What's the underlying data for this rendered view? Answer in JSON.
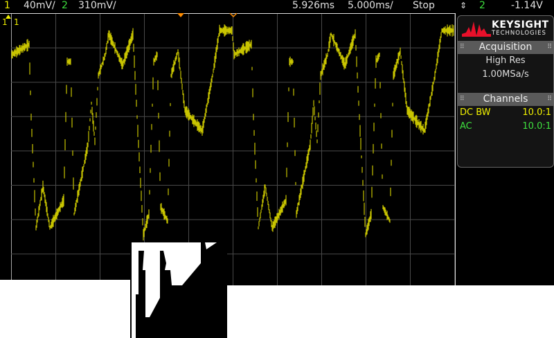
{
  "status_bar": {
    "ch1_num": "1",
    "ch1_scale": "40mV/",
    "ch2_num": "2",
    "ch2_scale": "310mV/",
    "time_delay": "5.926ms",
    "time_scale": "5.000ms/",
    "run_state": "Stop",
    "trigger_icon": "updown-arrows-icon",
    "trigger_source": "2",
    "trigger_level": "-1.14V"
  },
  "plot": {
    "ch1_marker": "1",
    "ch1_label": "1",
    "colors": {
      "ch1": "#f2f200",
      "ch2": "#3ee03e",
      "trigger": "#ff8c00",
      "grid": "#555555"
    }
  },
  "panel": {
    "brand": "KEYSIGHT",
    "brand_sub": "TECHNOLOGIES",
    "acquisition": {
      "title": "Acquisition",
      "mode": "High Res",
      "rate": "1.00MSa/s"
    },
    "channels": {
      "title": "Channels",
      "items": [
        {
          "label": "DC BW",
          "probe": "10.0:1",
          "color": "#f2f200"
        },
        {
          "label": "AC",
          "probe": "10.0:1",
          "color": "#3ee03e"
        }
      ]
    }
  }
}
